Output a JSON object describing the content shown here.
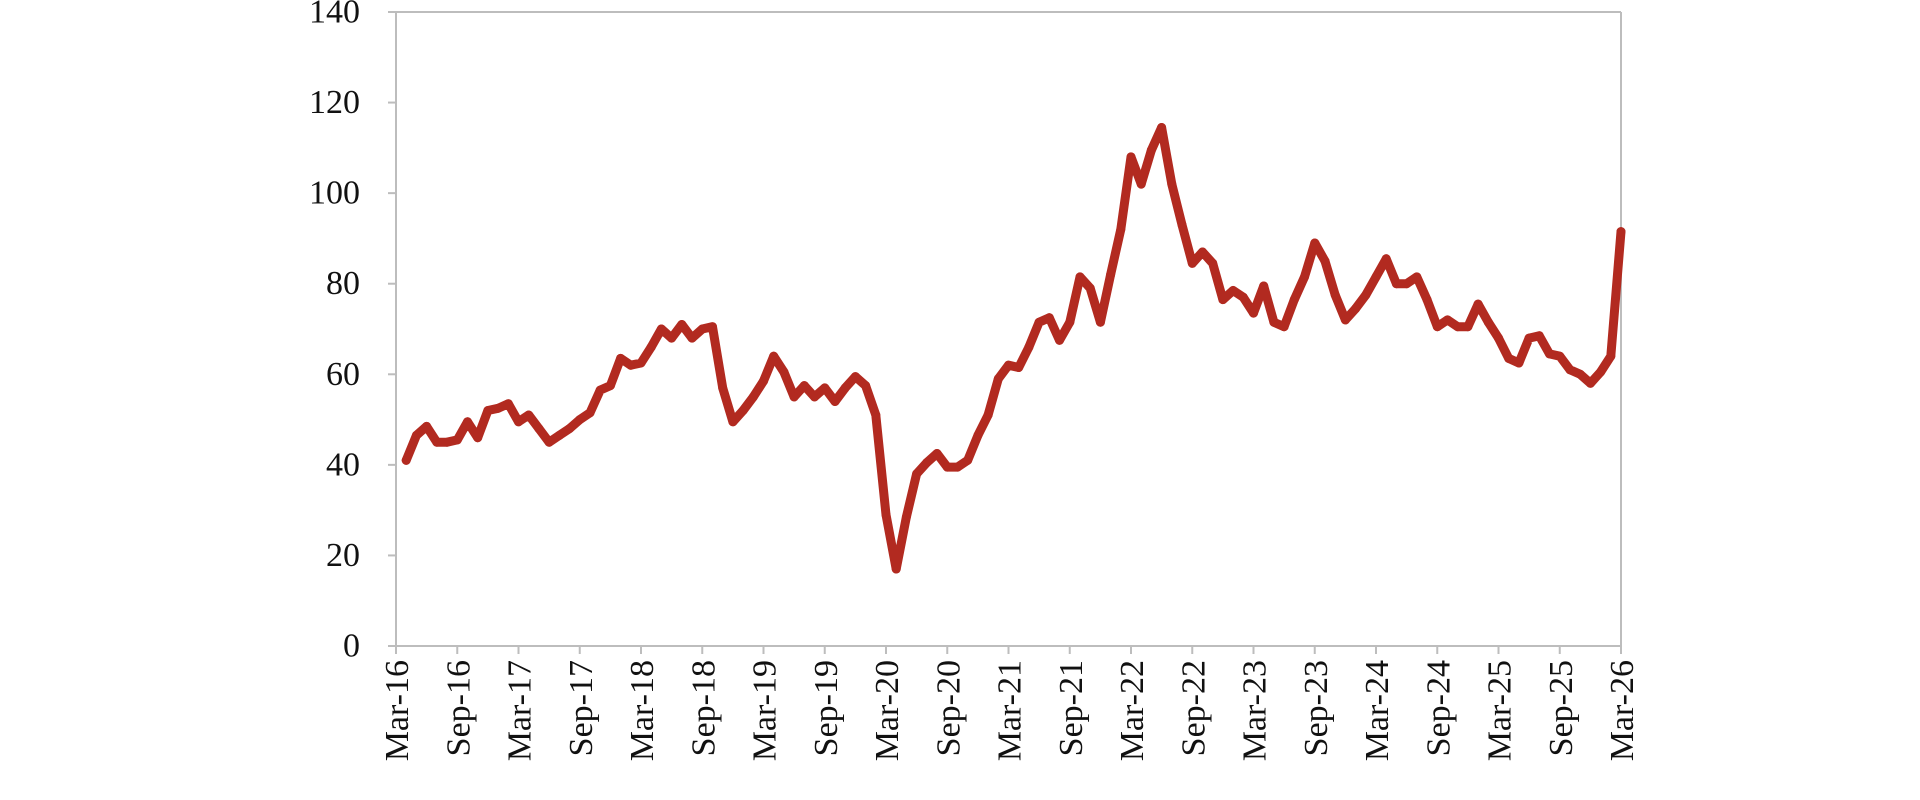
{
  "chart_data": {
    "type": "line",
    "title": "",
    "xlabel": "",
    "ylabel": "",
    "ylim": [
      0,
      140
    ],
    "yticks": [
      0,
      20,
      40,
      60,
      80,
      100,
      120,
      140
    ],
    "xlim": [
      "2016-03",
      "2026-03"
    ],
    "xtick_labels": [
      "Mar-16",
      "Sep-16",
      "Mar-17",
      "Sep-17",
      "Mar-18",
      "Sep-18",
      "Mar-19",
      "Sep-19",
      "Mar-20",
      "Sep-20",
      "Mar-21",
      "Sep-21",
      "Mar-22",
      "Sep-22",
      "Mar-23",
      "Sep-23",
      "Mar-24",
      "Sep-24",
      "Mar-25",
      "Sep-25",
      "Mar-26"
    ],
    "grid": false,
    "legend": "none",
    "series": [
      {
        "color": "#b22a20",
        "x": [
          "2016-04",
          "2016-05",
          "2016-06",
          "2016-07",
          "2016-08",
          "2016-09",
          "2016-10",
          "2016-11",
          "2016-12",
          "2017-01",
          "2017-02",
          "2017-03",
          "2017-04",
          "2017-05",
          "2017-06",
          "2017-07",
          "2017-08",
          "2017-09",
          "2017-10",
          "2017-11",
          "2017-12",
          "2018-01",
          "2018-02",
          "2018-03",
          "2018-04",
          "2018-05",
          "2018-06",
          "2018-07",
          "2018-08",
          "2018-09",
          "2018-10",
          "2018-11",
          "2018-12",
          "2019-01",
          "2019-02",
          "2019-03",
          "2019-04",
          "2019-05",
          "2019-06",
          "2019-07",
          "2019-08",
          "2019-09",
          "2019-10",
          "2019-11",
          "2019-12",
          "2020-01",
          "2020-02",
          "2020-03",
          "2020-04",
          "2020-05",
          "2020-06",
          "2020-07",
          "2020-08",
          "2020-09",
          "2020-10",
          "2020-11",
          "2020-12",
          "2021-01",
          "2021-02",
          "2021-03",
          "2021-04",
          "2021-05",
          "2021-06",
          "2021-07",
          "2021-08",
          "2021-09",
          "2021-10",
          "2021-11",
          "2021-12",
          "2022-01",
          "2022-02",
          "2022-03",
          "2022-04",
          "2022-05",
          "2022-06",
          "2022-07",
          "2022-08",
          "2022-09",
          "2022-10",
          "2022-11",
          "2022-12",
          "2023-01",
          "2023-02",
          "2023-03",
          "2023-04",
          "2023-05",
          "2023-06",
          "2023-07",
          "2023-08",
          "2023-09",
          "2023-10",
          "2023-11",
          "2023-12",
          "2024-01",
          "2024-02",
          "2024-03",
          "2024-04",
          "2024-05",
          "2024-06",
          "2024-07",
          "2024-08",
          "2024-09",
          "2024-10",
          "2024-11",
          "2024-12",
          "2025-01",
          "2025-02",
          "2025-03",
          "2025-04",
          "2025-05",
          "2025-06",
          "2025-07",
          "2025-08",
          "2025-09",
          "2025-10",
          "2025-11",
          "2025-12",
          "2026-01",
          "2026-02",
          "2026-03"
        ],
        "values": [
          41,
          46.5,
          48.5,
          45,
          45,
          45.5,
          49.5,
          46,
          52,
          52.5,
          53.5,
          49.5,
          51,
          48,
          45,
          46.5,
          48,
          50,
          51.5,
          56.5,
          57.5,
          63.5,
          62,
          62.5,
          66,
          70,
          68,
          71,
          68,
          70,
          70.5,
          57,
          49.5,
          52,
          55,
          58.5,
          64,
          60.5,
          55,
          57.5,
          55,
          57,
          54,
          57,
          59.5,
          57.5,
          51,
          29,
          17,
          28.5,
          38,
          40.5,
          42.5,
          39.5,
          39.5,
          41,
          46.5,
          51,
          59,
          62,
          61.5,
          66,
          71.5,
          72.5,
          67.5,
          71.5,
          81.5,
          79,
          71.5,
          82,
          92,
          108,
          102,
          109.5,
          114.5,
          102,
          93,
          84.5,
          87,
          84.5,
          76.5,
          78.5,
          77,
          73.5,
          79.5,
          71.5,
          70.5,
          76.5,
          81.5,
          89,
          85,
          77.5,
          72,
          74.5,
          77.5,
          81.5,
          85.5,
          80,
          80,
          81.5,
          76.5,
          70.5,
          72,
          70.5,
          70.5,
          75.5,
          71.5,
          68,
          63.5,
          62.5,
          68,
          68.5,
          64.5,
          64,
          61,
          60,
          58,
          60.5,
          64,
          91.5
        ]
      }
    ]
  }
}
